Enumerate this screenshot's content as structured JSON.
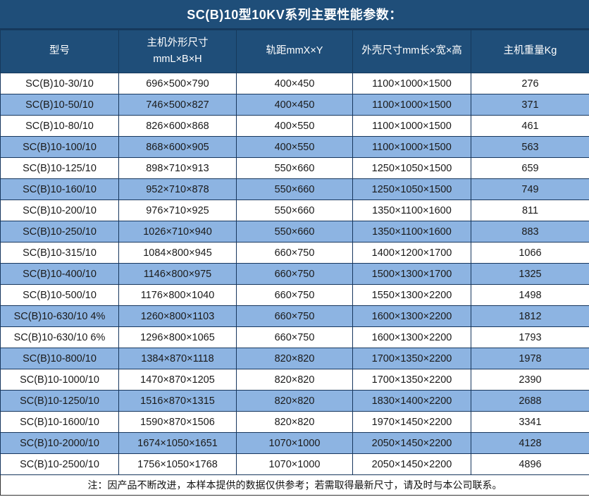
{
  "title": "SC(B)10型10KV系列主要性能参数：",
  "table": {
    "columns": [
      {
        "lines": [
          "型号"
        ]
      },
      {
        "lines": [
          "主机外形尺寸",
          "mmL×B×H"
        ]
      },
      {
        "lines": [
          "轨距mmX×Y"
        ]
      },
      {
        "lines": [
          "外壳尺寸mm长×宽×高"
        ]
      },
      {
        "lines": [
          "主机重量Kg"
        ]
      }
    ],
    "rows": [
      [
        "SC(B)10-30/10",
        "696×500×790",
        "400×450",
        "1100×1000×1500",
        "276"
      ],
      [
        "SC(B)10-50/10",
        "746×500×827",
        "400×450",
        "1100×1000×1500",
        "371"
      ],
      [
        "SC(B)10-80/10",
        "826×600×868",
        "400×550",
        "1100×1000×1500",
        "461"
      ],
      [
        "SC(B)10-100/10",
        "868×600×905",
        "400×550",
        "1100×1000×1500",
        "563"
      ],
      [
        "SC(B)10-125/10",
        "898×710×913",
        "550×660",
        "1250×1050×1500",
        "659"
      ],
      [
        "SC(B)10-160/10",
        "952×710×878",
        "550×660",
        "1250×1050×1500",
        "749"
      ],
      [
        "SC(B)10-200/10",
        "976×710×925",
        "550×660",
        "1350×1100×1600",
        "811"
      ],
      [
        "SC(B)10-250/10",
        "1026×710×940",
        "550×660",
        "1350×1100×1600",
        "883"
      ],
      [
        "SC(B)10-315/10",
        "1084×800×945",
        "660×750",
        "1400×1200×1700",
        "1066"
      ],
      [
        "SC(B)10-400/10",
        "1146×800×975",
        "660×750",
        "1500×1300×1700",
        "1325"
      ],
      [
        "SC(B)10-500/10",
        "1176×800×1040",
        "660×750",
        "1550×1300×2200",
        "1498"
      ],
      [
        "SC(B)10-630/10 4%",
        "1260×800×1103",
        "660×750",
        "1600×1300×2200",
        "1812"
      ],
      [
        "SC(B)10-630/10 6%",
        "1296×800×1065",
        "660×750",
        "1600×1300×2200",
        "1793"
      ],
      [
        "SC(B)10-800/10",
        "1384×870×1118",
        "820×820",
        "1700×1350×2200",
        "1978"
      ],
      [
        "SC(B)10-1000/10",
        "1470×870×1205",
        "820×820",
        "1700×1350×2200",
        "2390"
      ],
      [
        "SC(B)10-1250/10",
        "1516×870×1315",
        "820×820",
        "1830×1400×2200",
        "2688"
      ],
      [
        "SC(B)10-1600/10",
        "1590×870×1506",
        "820×820",
        "1970×1450×2200",
        "3341"
      ],
      [
        "SC(B)10-2000/10",
        "1674×1050×1651",
        "1070×1000",
        "2050×1450×2200",
        "4128"
      ],
      [
        "SC(B)10-2500/10",
        "1756×1050×1768",
        "1070×1000",
        "2050×1450×2200",
        "4896"
      ]
    ],
    "note": "注：因产品不断改进，本样本提供的数据仅供参考；若需取得最新尺寸，请及时与本公司联系。"
  },
  "colors": {
    "header_bg": "#1F4E79",
    "header_text": "#FFFFFF",
    "alt_row_bg": "#8DB4E2",
    "row_bg": "#FFFFFF",
    "border": "#17375E",
    "body_text": "#1A1A1A"
  }
}
